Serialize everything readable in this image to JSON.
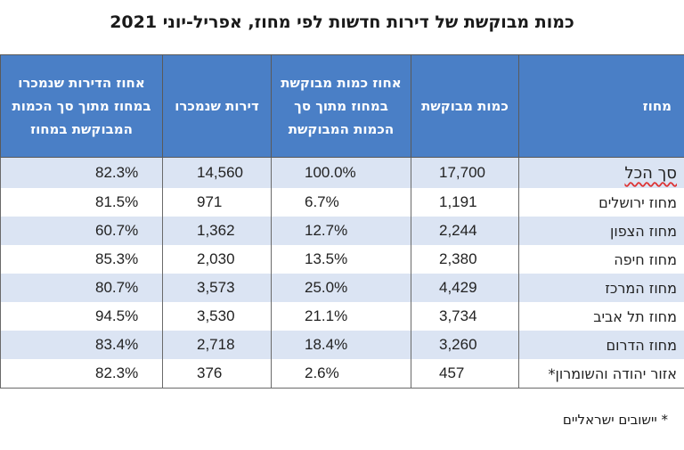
{
  "title": "כמות מבוקשת של דירות חדשות לפי מחוז, אפריל-יוני 2021",
  "headers": {
    "district": "מחוז",
    "quantity": "כמות מבוקשת",
    "share_of_total": "אחוז כמות מבוקשת במחוז מתוך סך הכמות המבוקשת",
    "sold": "דירות שנמכרו",
    "sold_share": "אחוז הדירות שנמכרו במחוז מתוך סך הכמות המבוקשת במחוז"
  },
  "rows": [
    {
      "district": "סך הכל",
      "quantity": "17,700",
      "share_of_total": "100.0%",
      "sold": "14,560",
      "sold_share": "82.3%"
    },
    {
      "district": "מחוז ירושלים",
      "quantity": "1,191",
      "share_of_total": "6.7%",
      "sold": "971",
      "sold_share": "81.5%"
    },
    {
      "district": "מחוז הצפון",
      "quantity": "2,244",
      "share_of_total": "12.7%",
      "sold": "1,362",
      "sold_share": "60.7%"
    },
    {
      "district": "מחוז חיפה",
      "quantity": "2,380",
      "share_of_total": "13.5%",
      "sold": "2,030",
      "sold_share": "85.3%"
    },
    {
      "district": "מחוז המרכז",
      "quantity": "4,429",
      "share_of_total": "25.0%",
      "sold": "3,573",
      "sold_share": "80.7%"
    },
    {
      "district": "מחוז תל אביב",
      "quantity": "3,734",
      "share_of_total": "21.1%",
      "sold": "3,530",
      "sold_share": "94.5%"
    },
    {
      "district": "מחוז הדרום",
      "quantity": "3,260",
      "share_of_total": "18.4%",
      "sold": "2,718",
      "sold_share": "83.4%"
    },
    {
      "district": "אזור יהודה והשומרון*",
      "quantity": "457",
      "share_of_total": "2.6%",
      "sold": "376",
      "sold_share": "82.3%"
    }
  ],
  "footnote": "* יישובים ישראליים",
  "colors": {
    "header_bg": "#4a7fc6",
    "header_text": "#ffffff",
    "band_row": "#dbe4f3"
  }
}
